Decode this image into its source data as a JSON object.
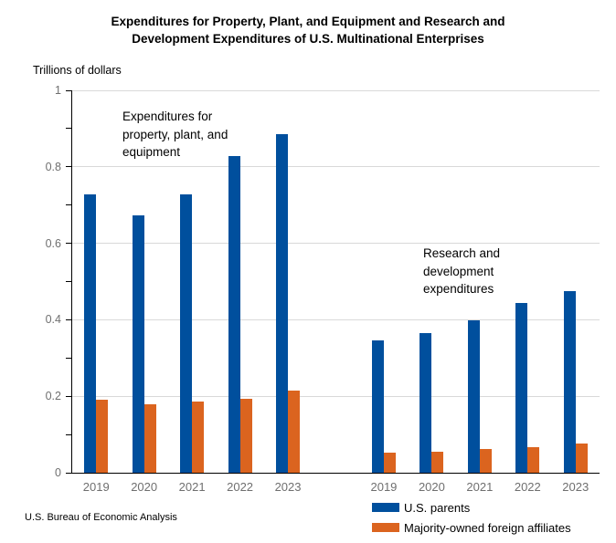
{
  "title": {
    "line1": "Expenditures for Property, Plant, and Equipment and Research and",
    "line2": "Development Expenditures of U.S. Multinational Enterprises"
  },
  "axis_unit_label": "Trillions of dollars",
  "source_note": "U.S. Bureau of Economic Analysis",
  "colors": {
    "us_parents": "#004F9D",
    "foreign_affiliates": "#DB641F",
    "gridline": "#D9D9D9",
    "axis": "#000000",
    "tick_label": "#6F6F6F"
  },
  "chart_data": {
    "type": "bar",
    "title": "Expenditures for Property, Plant, and Equipment and Research and Development Expenditures of U.S. Multinational Enterprises",
    "ylabel": "Trillions of dollars",
    "xlabel": "",
    "ylim": [
      0,
      1
    ],
    "y_major_ticks": [
      0,
      0.2,
      0.4,
      0.6,
      0.8,
      1
    ],
    "y_minor_step": 0.1,
    "grid": true,
    "legend_position": "bottom-right",
    "categories": [
      "2019",
      "2020",
      "2021",
      "2022",
      "2023"
    ],
    "groups": [
      {
        "label": "Expenditures for property, plant, and equipment",
        "annotation_lines": [
          "Expenditures for",
          "property, plant, and",
          "equipment"
        ],
        "series": [
          {
            "name": "U.S. parents",
            "color": "#004F9D",
            "values": [
              0.729,
              0.674,
              0.729,
              0.828,
              0.885
            ]
          },
          {
            "name": "Majority-owned foreign affiliates",
            "color": "#DB641F",
            "values": [
              0.19,
              0.178,
              0.186,
              0.194,
              0.214
            ]
          }
        ]
      },
      {
        "label": "Research and development expenditures",
        "annotation_lines": [
          "Research and",
          "development",
          "expenditures"
        ],
        "series": [
          {
            "name": "U.S. parents",
            "color": "#004F9D",
            "values": [
              0.346,
              0.364,
              0.399,
              0.443,
              0.474
            ]
          },
          {
            "name": "Majority-owned foreign affiliates",
            "color": "#DB641F",
            "values": [
              0.053,
              0.056,
              0.063,
              0.068,
              0.076
            ]
          }
        ]
      }
    ],
    "legend": [
      {
        "label": "U.S. parents",
        "color": "#004F9D"
      },
      {
        "label": "Majority-owned foreign affiliates",
        "color": "#DB641F"
      }
    ]
  }
}
